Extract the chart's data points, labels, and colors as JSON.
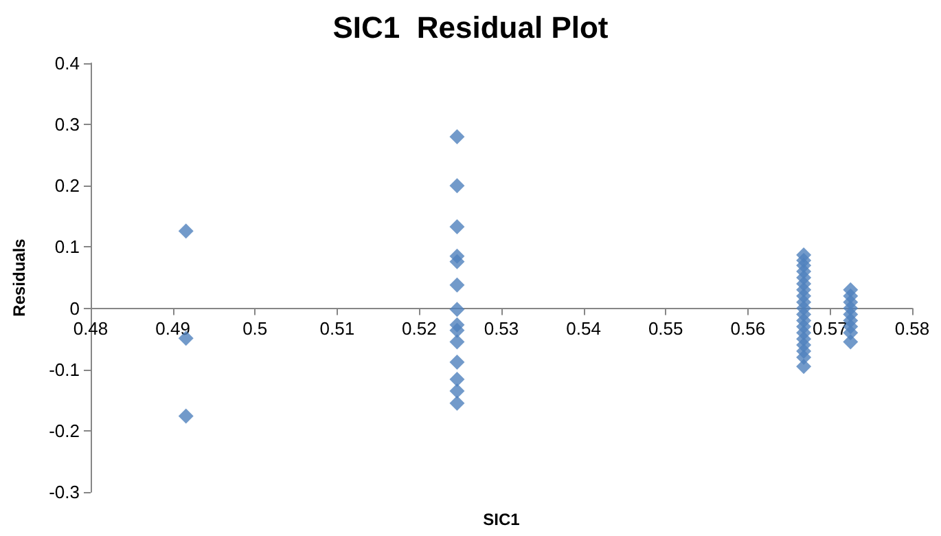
{
  "chart_data": {
    "type": "scatter",
    "title": "SIC1  Residual Plot",
    "xlabel": "SIC1",
    "ylabel": "Residuals",
    "series": [
      {
        "color": "#4f81bd",
        "x": [
          0.4916,
          0.4916,
          0.4916,
          0.5246,
          0.5246,
          0.5246,
          0.5246,
          0.5246,
          0.5246,
          0.5246,
          0.5246,
          0.5246,
          0.5246,
          0.5246,
          0.5246,
          0.5246,
          0.5246,
          0.5668,
          0.5668,
          0.5668,
          0.5668,
          0.5668,
          0.5668,
          0.5668,
          0.5668,
          0.5668,
          0.5668,
          0.5668,
          0.5668,
          0.5668,
          0.5668,
          0.5668,
          0.5668,
          0.5668,
          0.5668,
          0.5668,
          0.5725,
          0.5725,
          0.5725,
          0.5725,
          0.5725,
          0.5725,
          0.5725,
          0.5725,
          0.5725
        ],
        "values": [
          0.126,
          -0.049,
          -0.176,
          0.28,
          0.2,
          0.133,
          0.085,
          0.076,
          0.038,
          -0.002,
          -0.027,
          -0.036,
          -0.055,
          -0.088,
          -0.116,
          -0.135,
          -0.155,
          0.087,
          0.078,
          0.07,
          0.06,
          0.05,
          0.04,
          0.03,
          0.02,
          0.01,
          0.0,
          -0.01,
          -0.02,
          -0.03,
          -0.04,
          -0.05,
          -0.06,
          -0.07,
          -0.08,
          -0.095,
          0.03,
          0.02,
          0.01,
          0.0,
          -0.01,
          -0.02,
          -0.03,
          -0.04,
          -0.055
        ]
      }
    ],
    "xlim": [
      0.48,
      0.58
    ],
    "xticks": [
      0.48,
      0.49,
      0.5,
      0.51,
      0.52,
      0.53,
      0.54,
      0.55,
      0.56,
      0.57,
      0.58
    ],
    "ylim": [
      -0.3,
      0.4
    ],
    "yticks": [
      -0.3,
      -0.2,
      -0.1,
      0,
      0.1,
      0.2,
      0.3,
      0.4
    ],
    "grid": false,
    "marker": "diamond"
  }
}
